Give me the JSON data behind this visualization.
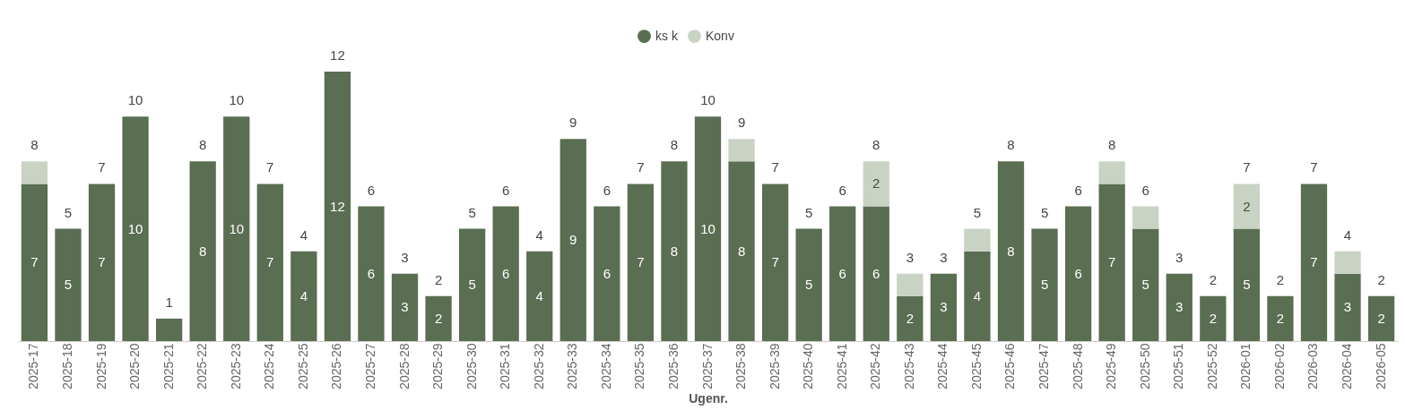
{
  "chart_data": {
    "type": "bar",
    "stacked": true,
    "xlabel": "Ugenr.",
    "legend": "top",
    "tick_labels": "x",
    "categories": [
      "2025-17",
      "2025-18",
      "2025-19",
      "2025-20",
      "2025-21",
      "2025-22",
      "2025-23",
      "2025-24",
      "2025-25",
      "2025-26",
      "2025-27",
      "2025-28",
      "2025-29",
      "2025-30",
      "2025-31",
      "2025-32",
      "2025-33",
      "2025-34",
      "2025-35",
      "2025-36",
      "2025-37",
      "2025-38",
      "2025-39",
      "2025-40",
      "2025-41",
      "2025-42",
      "2025-43",
      "2025-44",
      "2025-45",
      "2025-46",
      "2025-47",
      "2025-48",
      "2025-49",
      "2025-50",
      "2025-51",
      "2025-52",
      "2026-01",
      "2026-02",
      "2026-03",
      "2026-04",
      "2026-05"
    ],
    "series": [
      {
        "name": "ks k",
        "color": "#5a6e52",
        "values": [
          7,
          5,
          7,
          10,
          1,
          8,
          10,
          7,
          4,
          12,
          6,
          3,
          2,
          5,
          6,
          4,
          9,
          6,
          7,
          8,
          10,
          8,
          7,
          5,
          6,
          6,
          2,
          3,
          4,
          8,
          5,
          6,
          7,
          5,
          3,
          2,
          5,
          2,
          7,
          3,
          2
        ],
        "value_labels": [
          "7",
          "5",
          "7",
          "10",
          null,
          "8",
          "10",
          "7",
          "4",
          "12",
          "6",
          "3",
          "2",
          "5",
          "6",
          "4",
          "9",
          "6",
          "7",
          "8",
          "10",
          "8",
          "7",
          "5",
          "6",
          "6",
          "2",
          "3",
          "4",
          "8",
          "5",
          "6",
          "7",
          "5",
          "3",
          "2",
          "5",
          "2",
          "7",
          "3",
          "2"
        ]
      },
      {
        "name": "Konv",
        "color": "#c8d3c4",
        "values": [
          1,
          0,
          0,
          0,
          0,
          0,
          0,
          0,
          0,
          0,
          0,
          0,
          0,
          0,
          0,
          0,
          0,
          0,
          0,
          0,
          0,
          1,
          0,
          0,
          0,
          2,
          1,
          0,
          1,
          0,
          0,
          0,
          1,
          1,
          0,
          0,
          2,
          0,
          0,
          1,
          0
        ],
        "value_labels": [
          null,
          null,
          null,
          null,
          null,
          null,
          null,
          null,
          null,
          null,
          null,
          null,
          null,
          null,
          null,
          null,
          null,
          null,
          null,
          null,
          null,
          null,
          null,
          null,
          null,
          "2",
          null,
          null,
          null,
          null,
          null,
          null,
          null,
          null,
          null,
          null,
          "2",
          null,
          null,
          null,
          null
        ]
      }
    ],
    "totals": [
      "8",
      "5",
      "7",
      "10",
      "1",
      "8",
      "10",
      "7",
      "4",
      "12",
      "6",
      "3",
      "2",
      "5",
      "6",
      "4",
      "9",
      "6",
      "7",
      "8",
      "10",
      "9",
      "7",
      "5",
      "6",
      "8",
      "3",
      "3",
      "5",
      "8",
      "5",
      "6",
      "8",
      "6",
      "3",
      "2",
      "7",
      "2",
      "7",
      "4",
      "2"
    ]
  }
}
